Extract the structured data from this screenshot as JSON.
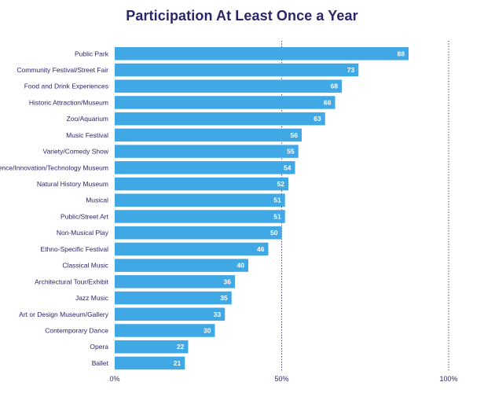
{
  "chart_data": {
    "type": "bar",
    "orientation": "horizontal",
    "title": "Participation At Least Once a Year",
    "categories": [
      "Public Park",
      "Community Festival/Street Fair",
      "Food and Drink Experiences",
      "Historic Attraction/Museum",
      "Zoo/Aquarium",
      "Music Festival",
      "Variety/Comedy Show",
      "Science/Innovation/Technology Museum",
      "Natural History Museum",
      "Musical",
      "Public/Street Art",
      "Non-Musical Play",
      "Ethno-Specific Festival",
      "Classical Music",
      "Architectural Tour/Exhibit",
      "Jazz Music",
      "Art or Design Museum/Gallery",
      "Contemporary Dance",
      "Opera",
      "Ballet"
    ],
    "values": [
      88,
      73,
      68,
      66,
      63,
      56,
      55,
      54,
      52,
      51,
      51,
      50,
      46,
      40,
      36,
      35,
      33,
      30,
      22,
      21
    ],
    "xlim": [
      0,
      100
    ],
    "xticks": [
      "0%",
      "50%",
      "100%"
    ],
    "grid": "dotted vertical at 50% and 100%",
    "bar_color": "#41a8e6",
    "text_color": "#2b2669"
  }
}
